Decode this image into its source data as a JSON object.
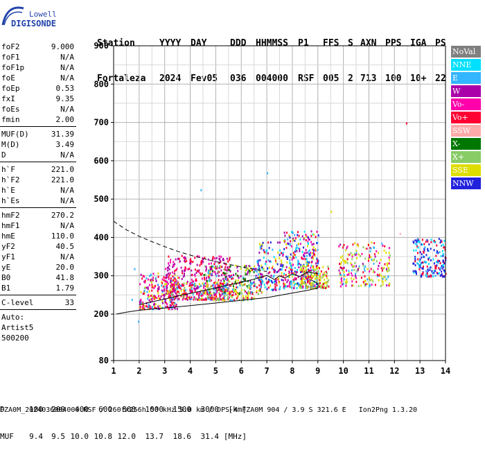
{
  "logo": {
    "line1": "Lowell",
    "line2": "DIGISONDE"
  },
  "header": {
    "labels": [
      "Station",
      "YYYY",
      "DAY",
      "DDD",
      "HHMMSS",
      "P1",
      "FFS",
      "S",
      "AXN",
      "PPS",
      "IGA",
      "PS"
    ],
    "values": [
      "Fortaleza",
      "2024",
      "Fev05",
      "036",
      "004000",
      "RSF",
      "005",
      "2",
      "713",
      "100",
      "10+",
      "22"
    ]
  },
  "params": {
    "group1": [
      {
        "k": "foF2",
        "v": "9.000"
      },
      {
        "k": "foF1",
        "v": "N/A"
      },
      {
        "k": "foF1p",
        "v": "N/A"
      },
      {
        "k": "foE",
        "v": "N/A"
      },
      {
        "k": "foEp",
        "v": "0.53"
      },
      {
        "k": "fxI",
        "v": "9.35"
      },
      {
        "k": "foEs",
        "v": "N/A"
      },
      {
        "k": "fmin",
        "v": "2.00"
      }
    ],
    "group2": [
      {
        "k": "MUF(D)",
        "v": "31.39"
      },
      {
        "k": "M(D)",
        "v": "3.49"
      },
      {
        "k": "D",
        "v": "N/A"
      }
    ],
    "group3": [
      {
        "k": "h`F",
        "v": "221.0"
      },
      {
        "k": "h`F2",
        "v": "221.0"
      },
      {
        "k": "h`E",
        "v": "N/A"
      },
      {
        "k": "h`Es",
        "v": "N/A"
      }
    ],
    "group4": [
      {
        "k": "hmF2",
        "v": "270.2"
      },
      {
        "k": "hmF1",
        "v": "N/A"
      },
      {
        "k": "hmE",
        "v": "110.0"
      },
      {
        "k": "yF2",
        "v": "40.5"
      },
      {
        "k": "yF1",
        "v": "N/A"
      },
      {
        "k": "yE",
        "v": "20.0"
      },
      {
        "k": "B0",
        "v": "41.8"
      },
      {
        "k": "B1",
        "v": "1.79"
      }
    ],
    "group5": [
      {
        "k": "C-level",
        "v": "33"
      }
    ],
    "auto_lines": [
      "Auto:",
      "Artist5",
      "500200"
    ]
  },
  "legend": [
    {
      "label": "NoVal",
      "bg": "#808080",
      "fg": "#ffffff"
    },
    {
      "label": "NNE",
      "bg": "#00e0ff",
      "fg": "#ffffff"
    },
    {
      "label": "E",
      "bg": "#33b5ff",
      "fg": "#ffffff"
    },
    {
      "label": "W",
      "bg": "#aa00aa",
      "fg": "#ffffff"
    },
    {
      "label": "Vo-",
      "bg": "#ff00aa",
      "fg": "#ffffff"
    },
    {
      "label": "Vo+",
      "bg": "#ff0033",
      "fg": "#ffffff"
    },
    {
      "label": "SSW",
      "bg": "#ffaaaa",
      "fg": "#ffffff"
    },
    {
      "label": "X-",
      "bg": "#007700",
      "fg": "#ffffff"
    },
    {
      "label": "X+",
      "bg": "#88cc66",
      "fg": "#ffffff"
    },
    {
      "label": "SSE",
      "bg": "#dddd00",
      "fg": "#ffffff"
    },
    {
      "label": "NNW",
      "bg": "#2222dd",
      "fg": "#ffffff"
    }
  ],
  "footer": {
    "d_label": "D",
    "d_values": [
      "100",
      "200",
      "400",
      "600",
      "800",
      "1000",
      "1500",
      "3000",
      "[km]"
    ],
    "muf_label": "MUF",
    "muf_values": [
      "9.4",
      "9.5",
      "10.0",
      "10.8",
      "12.0",
      "13.7",
      "18.6",
      "31.4",
      "[MHz]"
    ],
    "bottom_line": "FZA0M_2024036004000.RSF / 260fx256h 50 kHz 5.0 km / DPS-4 FZA0M 904 / 3.9 S 321.6 E   Ion2Png 1.3.20"
  },
  "chart_data": {
    "type": "scatter",
    "xlim": [
      1,
      14
    ],
    "ylim": [
      80,
      900
    ],
    "x_ticks": [
      1,
      2,
      3,
      4,
      5,
      6,
      7,
      8,
      9,
      10,
      11,
      12,
      13,
      14
    ],
    "y_ticks": [
      80,
      200,
      300,
      400,
      500,
      600,
      700,
      800,
      900
    ],
    "grid": true,
    "legend_position": "right",
    "clusters": [
      {
        "x": [
          2.0,
          3.5
        ],
        "y": [
          215,
          310
        ],
        "n": 260,
        "colors": [
          "#ff0033",
          "#ff00aa",
          "#aa00aa",
          "#33b5ff",
          "#dddd00"
        ]
      },
      {
        "x": [
          3.0,
          5.6
        ],
        "y": [
          240,
          355
        ],
        "n": 380,
        "colors": [
          "#aa00aa",
          "#ff00aa",
          "#ff0033",
          "#ff0033",
          "#aa00aa"
        ]
      },
      {
        "x": [
          4.5,
          6.8
        ],
        "y": [
          255,
          330
        ],
        "n": 220,
        "colors": [
          "#aa00aa",
          "#ff0033",
          "#33b5ff",
          "#dddd00",
          "#88cc66",
          "#007700"
        ]
      },
      {
        "x": [
          3.2,
          6.5
        ],
        "y": [
          238,
          285
        ],
        "n": 200,
        "colors": [
          "#dddd00",
          "#88cc66",
          "#33b5ff",
          "#ff0033"
        ]
      },
      {
        "x": [
          6.6,
          7.6
        ],
        "y": [
          265,
          390
        ],
        "n": 140,
        "colors": [
          "#ff0033",
          "#aa00aa",
          "#33b5ff",
          "#dddd00",
          "#00e0ff",
          "#2222dd"
        ]
      },
      {
        "x": [
          7.6,
          9.0
        ],
        "y": [
          270,
          420
        ],
        "n": 320,
        "colors": [
          "#ff0033",
          "#aa00aa",
          "#ff00aa",
          "#33b5ff",
          "#dddd00",
          "#2222dd",
          "#00e0ff"
        ]
      },
      {
        "x": [
          8.3,
          9.4
        ],
        "y": [
          270,
          330
        ],
        "n": 150,
        "colors": [
          "#dddd00",
          "#dddd00",
          "#88cc66",
          "#ff0033"
        ]
      },
      {
        "x": [
          9.8,
          11.8
        ],
        "y": [
          275,
          390
        ],
        "n": 220,
        "colors": [
          "#dddd00",
          "#dddd00",
          "#ff0033",
          "#aa00aa",
          "#ff00aa",
          "#33b5ff",
          "#88cc66"
        ]
      },
      {
        "x": [
          12.7,
          14.0
        ],
        "y": [
          300,
          400
        ],
        "n": 200,
        "colors": [
          "#2222dd",
          "#2222dd",
          "#33b5ff",
          "#00e0ff",
          "#ff0033"
        ]
      }
    ],
    "isolated_points": [
      {
        "x": 7.0,
        "y": 570,
        "color": "#33b5ff"
      },
      {
        "x": 4.4,
        "y": 526,
        "color": "#33b5ff"
      },
      {
        "x": 12.45,
        "y": 700,
        "color": "#ff0033"
      },
      {
        "x": 12.2,
        "y": 412,
        "color": "#ffaaaa"
      },
      {
        "x": 9.5,
        "y": 470,
        "color": "#dddd00"
      },
      {
        "x": 1.8,
        "y": 320,
        "color": "#33b5ff"
      },
      {
        "x": 1.95,
        "y": 183,
        "color": "#33b5ff"
      },
      {
        "x": 1.7,
        "y": 240,
        "color": "#33b5ff"
      }
    ],
    "lines": [
      {
        "name": "",
        "style": "dashed",
        "x": [
          1.0,
          1.5,
          2.0,
          2.5,
          3.0,
          3.5,
          4.0,
          4.5,
          5.0,
          5.5,
          6.0,
          6.5,
          7.0
        ],
        "y": [
          442,
          420,
          403,
          389,
          376,
          364,
          354,
          345,
          337,
          330,
          323,
          317,
          311
        ]
      },
      {
        "name": "",
        "style": "solid",
        "x": [
          2.0,
          2.5,
          3.0,
          3.5,
          4.0,
          4.5,
          5.0,
          5.5,
          6.0,
          6.5,
          7.0,
          7.3,
          7.5,
          7.7,
          8.0,
          8.3,
          8.6,
          9.0
        ],
        "y": [
          224,
          232,
          239,
          247,
          254,
          261,
          268,
          276,
          283,
          291,
          301,
          290,
          300,
          294,
          305,
          298,
          310,
          305
        ]
      },
      {
        "name": "",
        "style": "solid",
        "x": [
          1.1,
          1.5,
          2.0,
          3.0,
          4.0,
          5.0,
          6.0,
          7.0,
          8.0,
          8.6,
          9.0,
          9.0,
          8.7
        ],
        "y": [
          200,
          205,
          210,
          216,
          222,
          229,
          236,
          243,
          255,
          262,
          268,
          280,
          290
        ]
      }
    ]
  }
}
